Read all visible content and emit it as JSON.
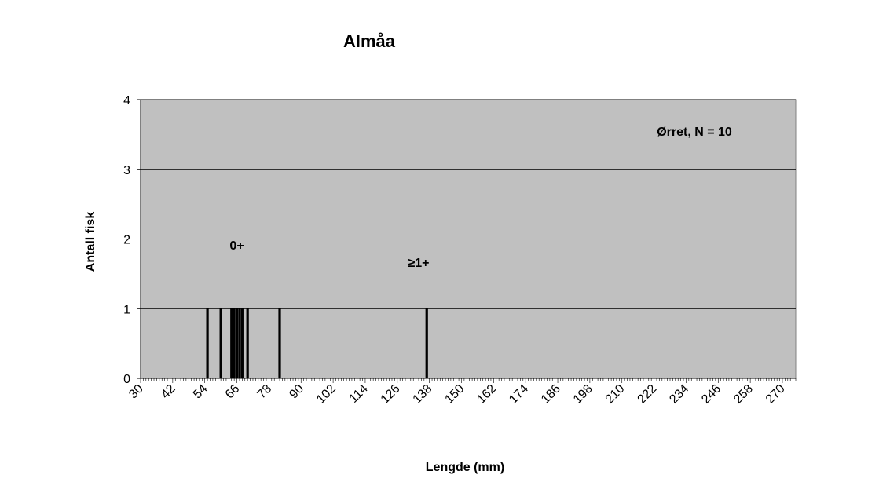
{
  "chart_data": {
    "type": "bar",
    "title": "Almåa",
    "xlabel": "Lengde (mm)",
    "ylabel": "Antall fisk",
    "annotation": "Ørret, N = 10",
    "age_labels": [
      {
        "text": "0+",
        "x": 66,
        "y": 1.85
      },
      {
        "text": "≥1+",
        "x": 134,
        "y": 1.6
      }
    ],
    "xlim": [
      30,
      275
    ],
    "ylim": [
      0,
      4
    ],
    "x_ticks": [
      30,
      42,
      54,
      66,
      78,
      90,
      102,
      114,
      126,
      138,
      150,
      162,
      174,
      186,
      198,
      210,
      222,
      234,
      246,
      258,
      270
    ],
    "y_ticks": [
      0,
      1,
      2,
      3,
      4
    ],
    "grid": true,
    "legend": "none",
    "colors": {
      "plot_background": "#c0c0c0",
      "bar": "#000000",
      "grid": "#000000"
    },
    "bars": [
      {
        "x": 55,
        "value": 1
      },
      {
        "x": 60,
        "value": 1
      },
      {
        "x": 64,
        "value": 1
      },
      {
        "x": 65,
        "value": 1
      },
      {
        "x": 66,
        "value": 1
      },
      {
        "x": 67,
        "value": 1
      },
      {
        "x": 68,
        "value": 1
      },
      {
        "x": 70,
        "value": 1
      },
      {
        "x": 82,
        "value": 1
      },
      {
        "x": 137,
        "value": 1
      }
    ]
  }
}
